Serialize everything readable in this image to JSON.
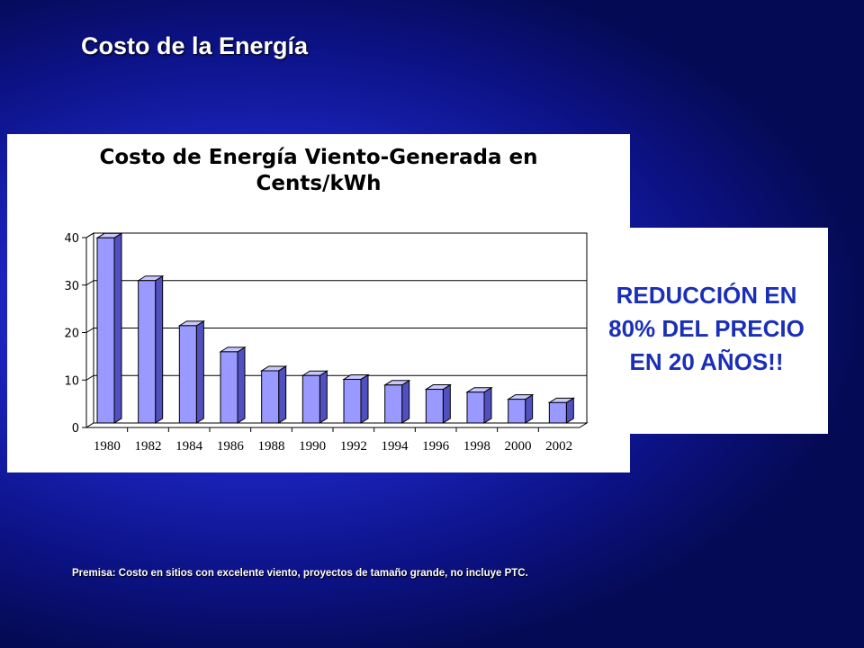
{
  "slide": {
    "title": "Costo de la Energía",
    "callout_lines": [
      "REDUCCIÓN EN",
      "80% DEL PRECIO",
      "EN 20 AÑOS!!"
    ],
    "premise": "Premisa: Costo en sitios con excelente viento, proyectos de tamaño grande, no incluye PTC."
  },
  "colors": {
    "bar_front": "#9999ff",
    "bar_side": "#5050c0",
    "bar_top": "#c8c8ff",
    "callout_text": "#1a2fb8"
  },
  "chart_data": {
    "type": "bar",
    "title_lines": [
      "Costo de Energía Viento-Generada en",
      "Cents/kWh"
    ],
    "categories": [
      "1980",
      "1982",
      "1984",
      "1986",
      "1988",
      "1990",
      "1992",
      "1994",
      "1996",
      "1998",
      "2000",
      "2002"
    ],
    "values": [
      39,
      30,
      20.5,
      15,
      11,
      10,
      9.2,
      8,
      7.1,
      6.5,
      5,
      4.3
    ],
    "ylim": [
      0,
      40
    ],
    "yticks": [
      0,
      10,
      20,
      30,
      40
    ],
    "grid": true,
    "legend": false
  }
}
